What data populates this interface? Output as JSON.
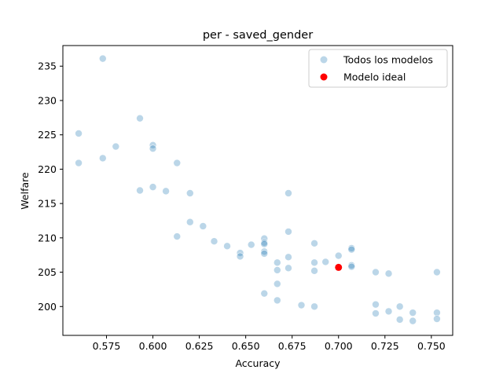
{
  "chart_data": {
    "type": "scatter",
    "title": "per - saved_gender",
    "xlabel": "Accuracy",
    "ylabel": "Welfare",
    "xlim": [
      0.5515,
      0.7615
    ],
    "ylim": [
      195.8,
      238.0
    ],
    "xticks": [
      "0.575",
      "0.600",
      "0.625",
      "0.650",
      "0.675",
      "0.700",
      "0.725",
      "0.750"
    ],
    "yticks": [
      "200",
      "205",
      "210",
      "215",
      "220",
      "225",
      "230",
      "235"
    ],
    "grid": false,
    "legend_position": "top-right",
    "series": [
      {
        "name": "Todos los modelos",
        "color": "#1f77b4",
        "alpha": 0.3,
        "points": [
          {
            "x": 0.56,
            "y": 225.2
          },
          {
            "x": 0.56,
            "y": 220.9
          },
          {
            "x": 0.573,
            "y": 236.1
          },
          {
            "x": 0.573,
            "y": 221.6
          },
          {
            "x": 0.58,
            "y": 223.3
          },
          {
            "x": 0.593,
            "y": 227.4
          },
          {
            "x": 0.593,
            "y": 216.9
          },
          {
            "x": 0.6,
            "y": 223.5
          },
          {
            "x": 0.6,
            "y": 223.0
          },
          {
            "x": 0.6,
            "y": 217.4
          },
          {
            "x": 0.607,
            "y": 216.8
          },
          {
            "x": 0.613,
            "y": 220.9
          },
          {
            "x": 0.613,
            "y": 210.2
          },
          {
            "x": 0.62,
            "y": 216.5
          },
          {
            "x": 0.62,
            "y": 212.3
          },
          {
            "x": 0.627,
            "y": 211.7
          },
          {
            "x": 0.633,
            "y": 209.5
          },
          {
            "x": 0.64,
            "y": 208.8
          },
          {
            "x": 0.647,
            "y": 207.8
          },
          {
            "x": 0.647,
            "y": 207.3
          },
          {
            "x": 0.653,
            "y": 209.0
          },
          {
            "x": 0.66,
            "y": 209.9
          },
          {
            "x": 0.66,
            "y": 209.3
          },
          {
            "x": 0.66,
            "y": 209.1
          },
          {
            "x": 0.66,
            "y": 208.0
          },
          {
            "x": 0.66,
            "y": 207.7
          },
          {
            "x": 0.66,
            "y": 201.9
          },
          {
            "x": 0.667,
            "y": 206.4
          },
          {
            "x": 0.667,
            "y": 205.3
          },
          {
            "x": 0.667,
            "y": 203.3
          },
          {
            "x": 0.667,
            "y": 200.9
          },
          {
            "x": 0.673,
            "y": 216.5
          },
          {
            "x": 0.673,
            "y": 210.9
          },
          {
            "x": 0.673,
            "y": 207.2
          },
          {
            "x": 0.673,
            "y": 205.6
          },
          {
            "x": 0.68,
            "y": 200.2
          },
          {
            "x": 0.687,
            "y": 209.2
          },
          {
            "x": 0.687,
            "y": 206.4
          },
          {
            "x": 0.687,
            "y": 205.2
          },
          {
            "x": 0.687,
            "y": 200.0
          },
          {
            "x": 0.693,
            "y": 206.5
          },
          {
            "x": 0.7,
            "y": 207.4
          },
          {
            "x": 0.707,
            "y": 208.5
          },
          {
            "x": 0.707,
            "y": 208.3
          },
          {
            "x": 0.707,
            "y": 206.0
          },
          {
            "x": 0.707,
            "y": 205.8
          },
          {
            "x": 0.72,
            "y": 205.0
          },
          {
            "x": 0.72,
            "y": 200.3
          },
          {
            "x": 0.72,
            "y": 199.0
          },
          {
            "x": 0.727,
            "y": 204.8
          },
          {
            "x": 0.727,
            "y": 199.3
          },
          {
            "x": 0.733,
            "y": 200.0
          },
          {
            "x": 0.733,
            "y": 198.1
          },
          {
            "x": 0.74,
            "y": 199.1
          },
          {
            "x": 0.74,
            "y": 197.9
          },
          {
            "x": 0.753,
            "y": 205.0
          },
          {
            "x": 0.753,
            "y": 199.1
          },
          {
            "x": 0.753,
            "y": 198.2
          }
        ]
      },
      {
        "name": "Modelo ideal",
        "color": "#ff0000",
        "alpha": 1.0,
        "points": [
          {
            "x": 0.7,
            "y": 205.7
          }
        ]
      }
    ]
  }
}
